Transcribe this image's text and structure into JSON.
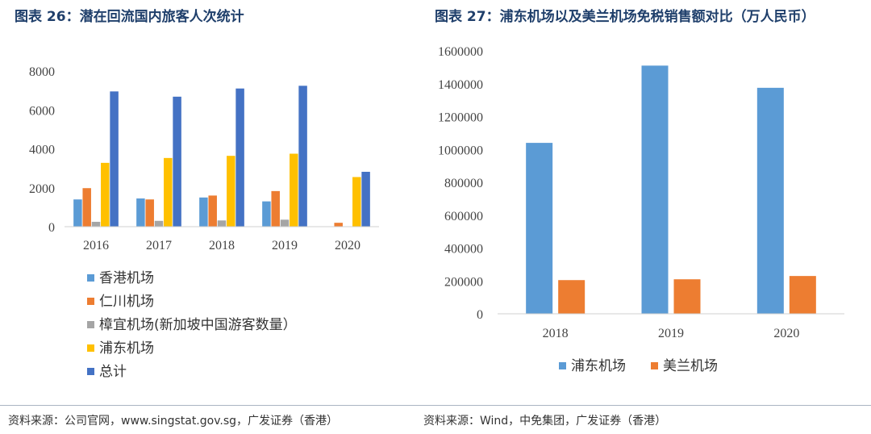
{
  "left": {
    "title": "图表 26：潜在回流国内旅客人次统计",
    "source": "资料来源：公司官网，www.singstat.gov.sg，广发证券（香港）"
  },
  "right": {
    "title": "图表 27：浦东机场以及美兰机场免税销售额对比（万人民币）",
    "source": "资料来源：Wind，中免集团，广发证券（香港）"
  },
  "chart_data": [
    {
      "type": "bar",
      "title": "图表 26：潜在回流国内旅客人次统计",
      "categories": [
        "2016",
        "2017",
        "2018",
        "2019",
        "2020"
      ],
      "ylim": [
        0,
        8000
      ],
      "yticks": [
        "0",
        "2000",
        "4000",
        "6000",
        "8000"
      ],
      "grid": false,
      "legend_position": "bottom",
      "series": [
        {
          "name": "香港机场",
          "color": "#5b9bd5",
          "values": [
            1400,
            1450,
            1500,
            1300,
            0
          ]
        },
        {
          "name": "仁川机场",
          "color": "#ed7d31",
          "values": [
            1980,
            1400,
            1600,
            1830,
            200
          ]
        },
        {
          "name": "樟宜机场(新加坡中国游客数量）",
          "color": "#a5a5a5",
          "values": [
            250,
            300,
            320,
            360,
            0
          ]
        },
        {
          "name": "浦东机场",
          "color": "#ffc000",
          "values": [
            3280,
            3530,
            3640,
            3750,
            2550
          ]
        },
        {
          "name": "总计",
          "color": "#4472c4",
          "values": [
            6950,
            6680,
            7100,
            7240,
            2820
          ]
        }
      ]
    },
    {
      "type": "bar",
      "title": "图表 27：浦东机场以及美兰机场免税销售额对比（万人民币）",
      "categories": [
        "2018",
        "2019",
        "2020"
      ],
      "ylim": [
        0,
        1600000
      ],
      "yticks": [
        "0",
        "200000",
        "400000",
        "600000",
        "800000",
        "1000000",
        "1200000",
        "1400000",
        "1600000"
      ],
      "grid": false,
      "legend_position": "bottom",
      "series": [
        {
          "name": "浦东机场",
          "color": "#5b9bd5",
          "values": [
            1040000,
            1510000,
            1375000
          ]
        },
        {
          "name": "美兰机场",
          "color": "#ed7d31",
          "values": [
            205000,
            210000,
            230000
          ]
        }
      ]
    }
  ]
}
